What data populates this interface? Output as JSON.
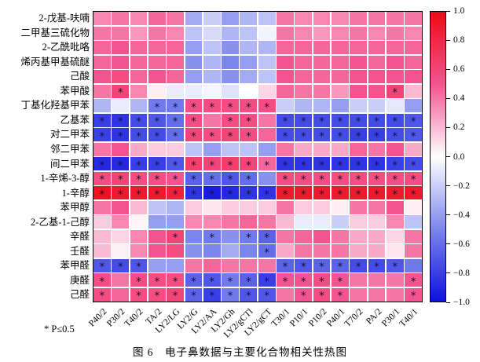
{
  "figure": {
    "note": "* P≤0.5",
    "caption": "图 6　电子鼻数据与主要化合物相关性热图"
  },
  "chart_data": {
    "type": "heatmap",
    "title": "电子鼻数据与主要化合物相关性热图",
    "rows": [
      "2-戊基-呋喃",
      "二甲基三硫化物",
      "2-乙酰吡咯",
      "烯丙基甲基硫醚",
      "己酸",
      "苯甲酸",
      "丁基化羟基甲苯",
      "乙基苯",
      "对二甲苯",
      "邻二甲苯",
      "间二甲苯",
      "1-辛烯-3-醇",
      "1-辛醇",
      "苯甲醇",
      "2-乙基-1-己醇",
      "辛醛",
      "壬醛",
      "苯甲醛",
      "庚醛",
      "己醛"
    ],
    "columns": [
      "P40/2",
      "P30/2",
      "T40/2",
      "TA/2",
      "LY2/LG",
      "LY2/G",
      "LY2/AA",
      "LY2/Gh",
      "LY2/gCTl",
      "LY2/gCT",
      "T30/1",
      "P10/1",
      "P10/2",
      "P40/1",
      "T70/2",
      "PA/2",
      "P30/1",
      "T40/1"
    ],
    "values": [
      [
        0.35,
        0.4,
        0.35,
        0.45,
        0.4,
        -0.35,
        -0.2,
        -0.4,
        -0.3,
        -0.25,
        0.4,
        0.35,
        0.35,
        0.35,
        0.4,
        0.4,
        0.4,
        0.4
      ],
      [
        0.4,
        0.4,
        0.3,
        0.4,
        0.35,
        -0.25,
        -0.15,
        -0.3,
        -0.25,
        -0.05,
        0.4,
        0.35,
        0.3,
        0.35,
        0.4,
        0.35,
        0.4,
        0.35
      ],
      [
        0.45,
        0.5,
        0.45,
        0.45,
        0.45,
        -0.4,
        -0.25,
        -0.45,
        -0.3,
        -0.3,
        0.45,
        0.45,
        0.45,
        0.45,
        0.45,
        0.45,
        0.45,
        0.45
      ],
      [
        0.45,
        0.5,
        0.45,
        0.45,
        0.45,
        -0.45,
        -0.3,
        -0.5,
        -0.4,
        -0.25,
        0.5,
        0.45,
        0.45,
        0.45,
        0.5,
        0.45,
        0.5,
        0.45
      ],
      [
        0.5,
        0.55,
        0.45,
        0.5,
        0.45,
        -0.4,
        -0.3,
        -0.45,
        -0.35,
        -0.25,
        0.5,
        0.45,
        0.45,
        0.45,
        0.5,
        0.5,
        0.5,
        0.5
      ],
      [
        0.4,
        0.6,
        0.35,
        0.05,
        -0.08,
        -0.08,
        -0.04,
        -0.12,
        0.0,
        0.12,
        0.45,
        0.4,
        0.4,
        0.3,
        0.5,
        0.5,
        0.6,
        0.2
      ],
      [
        -0.3,
        -0.08,
        -0.3,
        -0.55,
        -0.55,
        0.55,
        0.55,
        0.55,
        0.55,
        0.55,
        -0.2,
        -0.3,
        -0.3,
        -0.4,
        -0.2,
        -0.2,
        -0.1,
        -0.4
      ],
      [
        -0.8,
        -0.85,
        -0.75,
        -0.7,
        -0.6,
        0.55,
        0.4,
        0.55,
        0.55,
        0.4,
        -0.75,
        -0.75,
        -0.75,
        -0.75,
        -0.75,
        -0.75,
        -0.75,
        -0.7
      ],
      [
        -0.8,
        -0.85,
        -0.75,
        -0.75,
        -0.6,
        0.6,
        0.55,
        0.6,
        0.55,
        0.45,
        -0.75,
        -0.75,
        -0.75,
        -0.75,
        -0.8,
        -0.8,
        -0.75,
        -0.7
      ],
      [
        0.4,
        0.5,
        0.25,
        0.15,
        0.15,
        -0.25,
        -0.4,
        -0.25,
        -0.25,
        -0.4,
        0.4,
        0.25,
        0.25,
        0.25,
        0.45,
        0.4,
        0.5,
        0.25
      ],
      [
        -0.9,
        -0.9,
        -0.8,
        -0.8,
        -0.7,
        0.65,
        0.6,
        0.65,
        0.6,
        0.45,
        -0.85,
        -0.85,
        -0.85,
        -0.85,
        -0.85,
        -0.85,
        -0.8,
        -0.75
      ],
      [
        0.55,
        0.6,
        0.55,
        0.55,
        0.5,
        -0.65,
        -0.6,
        -0.7,
        -0.6,
        -0.45,
        0.55,
        0.55,
        0.55,
        0.55,
        0.55,
        0.55,
        0.55,
        0.55
      ],
      [
        0.95,
        0.9,
        0.9,
        0.9,
        0.85,
        -0.85,
        -0.95,
        -0.9,
        -0.85,
        -0.85,
        0.9,
        0.9,
        0.9,
        0.9,
        0.9,
        0.9,
        0.9,
        0.9
      ],
      [
        0.4,
        0.5,
        0.2,
        -0.25,
        -0.3,
        0.15,
        0.08,
        0.15,
        0.15,
        0.15,
        0.4,
        0.15,
        0.15,
        0.05,
        0.4,
        0.4,
        0.5,
        0.05
      ],
      [
        0.15,
        0.35,
        0.03,
        -0.4,
        -0.4,
        0.35,
        0.35,
        0.4,
        0.45,
        0.4,
        0.2,
        -0.08,
        -0.08,
        -0.2,
        0.15,
        0.15,
        0.35,
        -0.25
      ],
      [
        0.2,
        0.12,
        0.35,
        0.5,
        0.6,
        -0.5,
        -0.55,
        -0.45,
        -0.55,
        -0.65,
        0.4,
        0.45,
        0.5,
        0.4,
        0.25,
        0.25,
        0.12,
        0.4
      ],
      [
        0.2,
        0.04,
        0.35,
        0.5,
        0.55,
        -0.45,
        -0.5,
        -0.35,
        -0.5,
        -0.6,
        0.25,
        0.4,
        0.4,
        0.4,
        0.25,
        0.25,
        0.08,
        0.4
      ],
      [
        -0.7,
        -0.75,
        -0.7,
        -0.4,
        -0.4,
        0.4,
        0.45,
        0.4,
        0.4,
        0.4,
        -0.65,
        -0.7,
        -0.65,
        -0.65,
        -0.75,
        -0.75,
        -0.7,
        -0.55
      ],
      [
        0.55,
        0.4,
        0.55,
        0.55,
        0.55,
        -0.65,
        -0.7,
        -0.55,
        -0.65,
        -0.8,
        0.5,
        0.5,
        0.55,
        0.5,
        0.4,
        0.4,
        0.4,
        0.5
      ],
      [
        0.55,
        0.45,
        0.55,
        0.55,
        0.6,
        -0.65,
        -0.8,
        -0.55,
        -0.7,
        -0.7,
        0.4,
        0.5,
        0.55,
        0.5,
        0.4,
        0.4,
        0.4,
        0.5
      ]
    ],
    "significant": [
      [
        0,
        0,
        0,
        0,
        0,
        0,
        0,
        0,
        0,
        0,
        0,
        0,
        0,
        0,
        0,
        0,
        0,
        0
      ],
      [
        0,
        0,
        0,
        0,
        0,
        0,
        0,
        0,
        0,
        0,
        0,
        0,
        0,
        0,
        0,
        0,
        0,
        0
      ],
      [
        0,
        0,
        0,
        0,
        0,
        0,
        0,
        0,
        0,
        0,
        0,
        0,
        0,
        0,
        0,
        0,
        0,
        0
      ],
      [
        0,
        0,
        0,
        0,
        0,
        0,
        0,
        0,
        0,
        0,
        0,
        0,
        0,
        0,
        0,
        0,
        0,
        0
      ],
      [
        0,
        0,
        0,
        0,
        0,
        0,
        0,
        0,
        0,
        0,
        0,
        0,
        0,
        0,
        0,
        0,
        0,
        0
      ],
      [
        0,
        1,
        0,
        0,
        0,
        0,
        0,
        0,
        0,
        0,
        0,
        0,
        0,
        0,
        0,
        0,
        1,
        0
      ],
      [
        0,
        0,
        0,
        1,
        1,
        1,
        1,
        1,
        1,
        1,
        0,
        0,
        0,
        0,
        0,
        0,
        0,
        0
      ],
      [
        1,
        1,
        1,
        1,
        1,
        1,
        0,
        1,
        1,
        0,
        1,
        1,
        1,
        1,
        1,
        1,
        1,
        1
      ],
      [
        1,
        1,
        1,
        1,
        1,
        1,
        1,
        1,
        1,
        0,
        1,
        1,
        1,
        1,
        1,
        1,
        1,
        1
      ],
      [
        0,
        0,
        0,
        0,
        0,
        0,
        0,
        0,
        0,
        0,
        0,
        0,
        0,
        0,
        0,
        0,
        0,
        0
      ],
      [
        1,
        1,
        1,
        1,
        1,
        1,
        1,
        1,
        1,
        1,
        1,
        1,
        1,
        1,
        1,
        1,
        1,
        1
      ],
      [
        1,
        1,
        1,
        1,
        1,
        1,
        1,
        1,
        1,
        0,
        1,
        1,
        1,
        1,
        1,
        1,
        1,
        1
      ],
      [
        1,
        1,
        1,
        1,
        1,
        1,
        1,
        1,
        1,
        1,
        1,
        1,
        1,
        1,
        1,
        1,
        1,
        1
      ],
      [
        0,
        0,
        0,
        0,
        0,
        0,
        0,
        0,
        0,
        0,
        0,
        0,
        0,
        0,
        0,
        0,
        0,
        0
      ],
      [
        0,
        0,
        0,
        0,
        0,
        0,
        0,
        0,
        0,
        0,
        0,
        0,
        0,
        0,
        0,
        0,
        0,
        0
      ],
      [
        0,
        0,
        0,
        0,
        1,
        0,
        1,
        0,
        1,
        1,
        0,
        0,
        0,
        0,
        0,
        0,
        0,
        0
      ],
      [
        0,
        0,
        0,
        0,
        0,
        0,
        0,
        0,
        0,
        1,
        0,
        0,
        0,
        0,
        0,
        0,
        0,
        0
      ],
      [
        1,
        1,
        1,
        0,
        0,
        0,
        0,
        0,
        0,
        0,
        1,
        1,
        1,
        1,
        1,
        1,
        1,
        0
      ],
      [
        1,
        0,
        1,
        1,
        1,
        1,
        1,
        1,
        1,
        1,
        1,
        1,
        1,
        1,
        0,
        0,
        0,
        1
      ],
      [
        1,
        0,
        1,
        1,
        1,
        1,
        1,
        1,
        1,
        1,
        0,
        1,
        1,
        1,
        0,
        0,
        0,
        1
      ]
    ],
    "sig_marker": "*",
    "vmin": -1.0,
    "vmax": 1.0,
    "colorbar": {
      "position": "right",
      "ticks": [
        1.0,
        0.8,
        0.6,
        0.4,
        0.2,
        0.0,
        -0.2,
        -0.4,
        -0.6,
        -0.8,
        -1.0
      ],
      "tick_labels": [
        "1.0",
        "0.8",
        "0.6",
        "0.4",
        "0.2",
        "0.0",
        "−0.2",
        "−0.4",
        "−0.6",
        "−0.8",
        "−1.0"
      ],
      "max_color": "#ee0a16",
      "pos_mid_color": "#f3548f",
      "mid_color": "#ffffff",
      "neg_mid_color": "#7b86ec",
      "min_color": "#0f0fe0"
    },
    "grid_gap_color": "#ffffff"
  }
}
